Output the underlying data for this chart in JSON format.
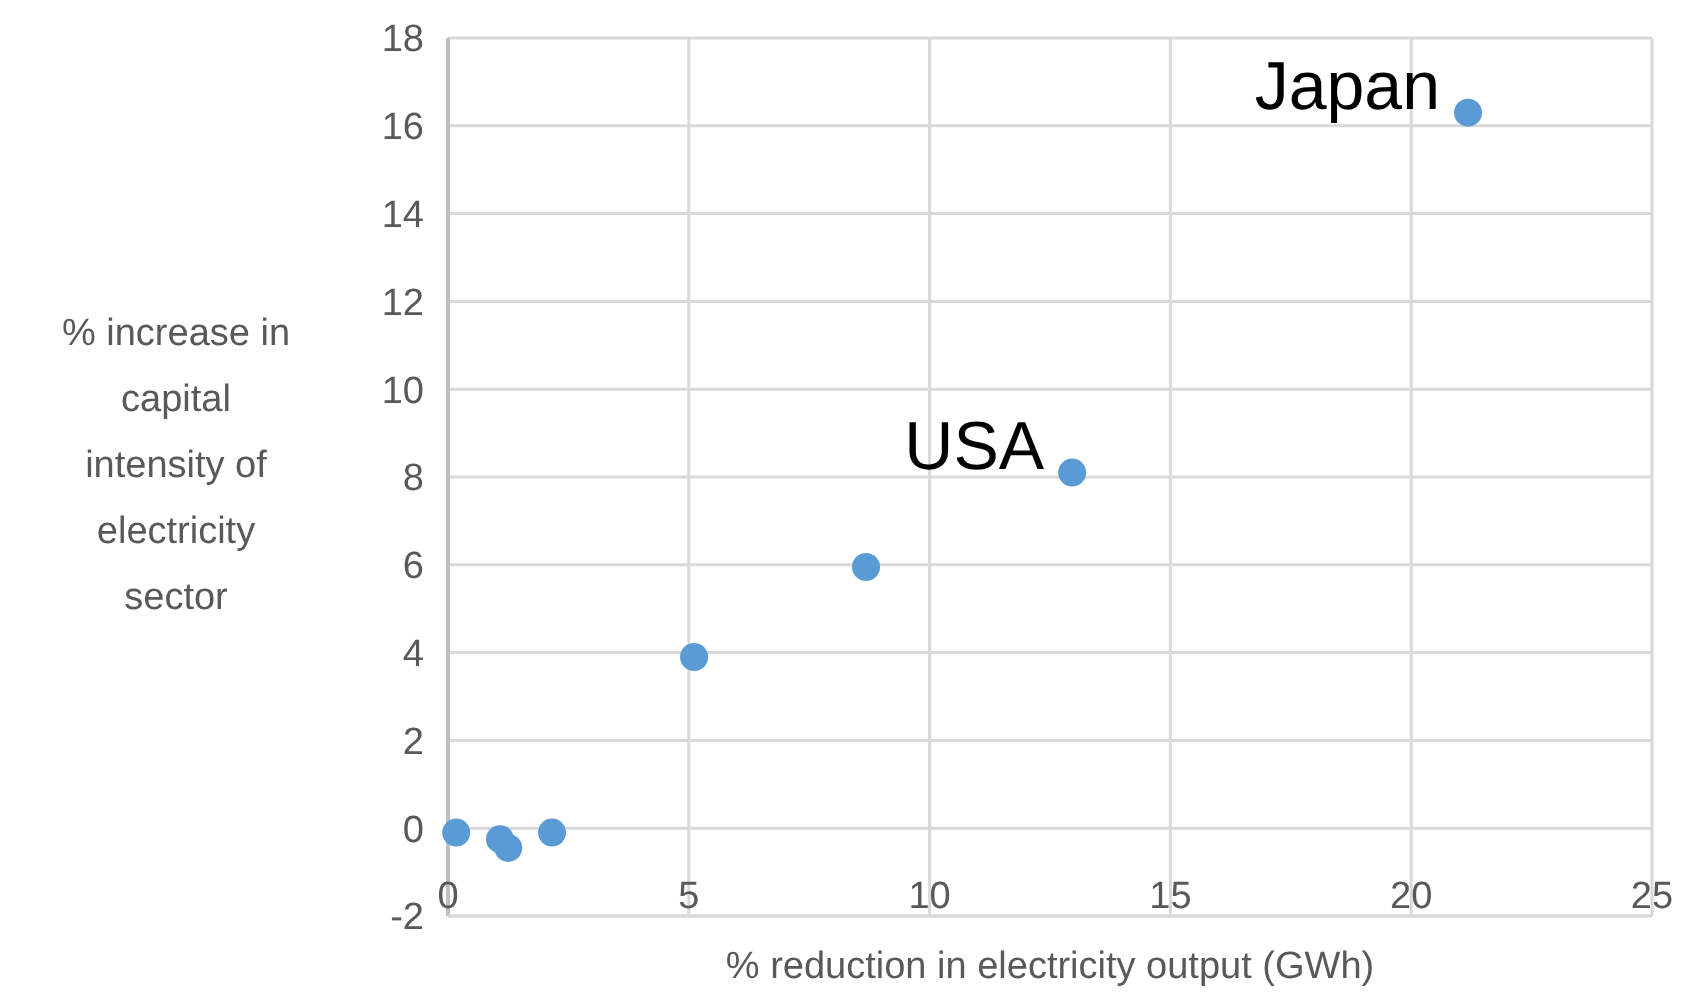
{
  "chart_data": {
    "type": "scatter",
    "xlabel": "% reduction in electricity output (GWh)",
    "ylabel": "% increase in capital intensity of electricity sector",
    "x": [
      0.17,
      1.08,
      1.25,
      2.16,
      5.11,
      8.68,
      12.96,
      21.18
    ],
    "series": [
      {
        "color": "#5b9bd5",
        "values": [
          -0.1,
          -0.25,
          -0.45,
          -0.1,
          3.9,
          5.95,
          8.1,
          16.3
        ]
      }
    ],
    "xlim": [
      0,
      25
    ],
    "xticks": [
      0,
      5,
      10,
      15,
      20,
      25
    ],
    "ylim": [
      -2,
      18
    ],
    "yticks": [
      -2,
      0,
      2,
      4,
      6,
      8,
      10,
      12,
      14,
      16,
      18
    ],
    "grid": true,
    "marker": "circle",
    "annotations": [
      {
        "text": "Japan",
        "x": 21.18,
        "y": 16.3
      },
      {
        "text": "USA",
        "x": 12.96,
        "y": 8.1
      }
    ]
  }
}
